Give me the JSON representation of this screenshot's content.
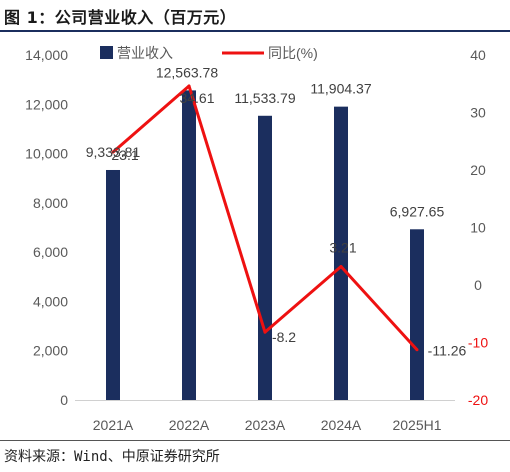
{
  "figure": {
    "title": "图 1：公司营业收入（百万元）",
    "source": "资料来源：Wind、中原证券研究所"
  },
  "chart_data": {
    "type": "bar",
    "categories": [
      "2021A",
      "2022A",
      "2023A",
      "2024A",
      "2025H1"
    ],
    "series": [
      {
        "name": "营业收入",
        "type": "bar",
        "axis": "left",
        "values": [
          9333.81,
          12563.78,
          11533.79,
          11904.37,
          6927.65
        ],
        "labels": [
          "9,333.81",
          "12,563.78",
          "11,533.79",
          "11,904.37",
          "6,927.65"
        ],
        "color": "#1b2e5e"
      },
      {
        "name": "同比(%)",
        "type": "line",
        "axis": "right",
        "values": [
          23.1,
          34.61,
          -8.2,
          3.21,
          -11.26
        ],
        "labels": [
          "23.1",
          "34.61",
          "-8.2",
          "3.21",
          "-11.26"
        ],
        "color": "#ee1111"
      }
    ],
    "y_left": {
      "min": 0,
      "max": 14000,
      "step": 2000,
      "ticks": [
        "0",
        "2,000",
        "4,000",
        "6,000",
        "8,000",
        "10,000",
        "12,000",
        "14,000"
      ]
    },
    "y_right": {
      "min": -20,
      "max": 40,
      "step": 10,
      "ticks": [
        "-20",
        "-10",
        "0",
        "10",
        "20",
        "30",
        "40"
      ],
      "negative_color": "#ee1111"
    },
    "grid": false,
    "legend_position": "top"
  }
}
